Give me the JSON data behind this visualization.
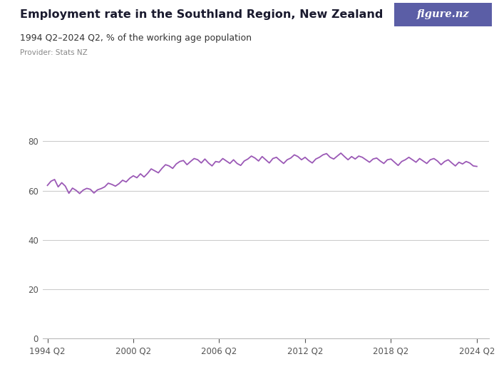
{
  "title": "Employment rate in the Southland Region, New Zealand",
  "subtitle": "1994 Q2–2024 Q2, % of the working age population",
  "provider": "Provider: Stats NZ",
  "line_color": "#9B59B6",
  "bg_color": "#ffffff",
  "grid_color": "#cccccc",
  "yticks": [
    0,
    20,
    40,
    60,
    80
  ],
  "ylim": [
    0,
    88
  ],
  "xlim": [
    1993.9,
    2025.1
  ],
  "xtick_positions": [
    1994.25,
    2000.25,
    2006.25,
    2012.25,
    2018.25,
    2024.25
  ],
  "xtick_labels": [
    "1994 Q2",
    "2000 Q2",
    "2006 Q2",
    "2012 Q2",
    "2018 Q2",
    "2024 Q2"
  ],
  "figurenz_color": "#5B5EA6",
  "values": [
    62.1,
    63.8,
    64.5,
    61.5,
    63.2,
    61.8,
    58.9,
    61.0,
    60.1,
    58.8,
    60.2,
    60.9,
    60.5,
    59.0,
    60.3,
    60.8,
    61.5,
    63.0,
    62.5,
    61.8,
    62.8,
    64.2,
    63.5,
    65.0,
    66.0,
    65.2,
    66.8,
    65.5,
    67.0,
    68.8,
    68.0,
    67.2,
    69.0,
    70.5,
    70.0,
    69.0,
    70.8,
    71.8,
    72.2,
    70.5,
    71.8,
    73.0,
    72.5,
    71.2,
    72.8,
    71.2,
    70.0,
    71.8,
    71.5,
    73.0,
    72.0,
    71.0,
    72.5,
    71.0,
    70.2,
    72.0,
    72.8,
    74.0,
    73.2,
    72.0,
    73.8,
    72.5,
    71.2,
    73.0,
    73.5,
    72.2,
    71.0,
    72.5,
    73.2,
    74.5,
    73.8,
    72.5,
    73.5,
    72.2,
    71.2,
    72.8,
    73.5,
    74.5,
    75.0,
    73.5,
    72.8,
    74.0,
    75.2,
    73.8,
    72.5,
    73.8,
    72.8,
    74.0,
    73.5,
    72.5,
    71.5,
    72.8,
    73.2,
    72.0,
    71.0,
    72.5,
    72.8,
    71.5,
    70.2,
    71.8,
    72.5,
    73.5,
    72.5,
    71.5,
    73.0,
    72.0,
    71.0,
    72.5,
    73.0,
    72.0,
    70.5,
    71.8,
    72.5,
    71.2,
    70.0,
    71.5,
    70.8,
    71.8,
    71.2,
    70.0,
    69.8
  ]
}
